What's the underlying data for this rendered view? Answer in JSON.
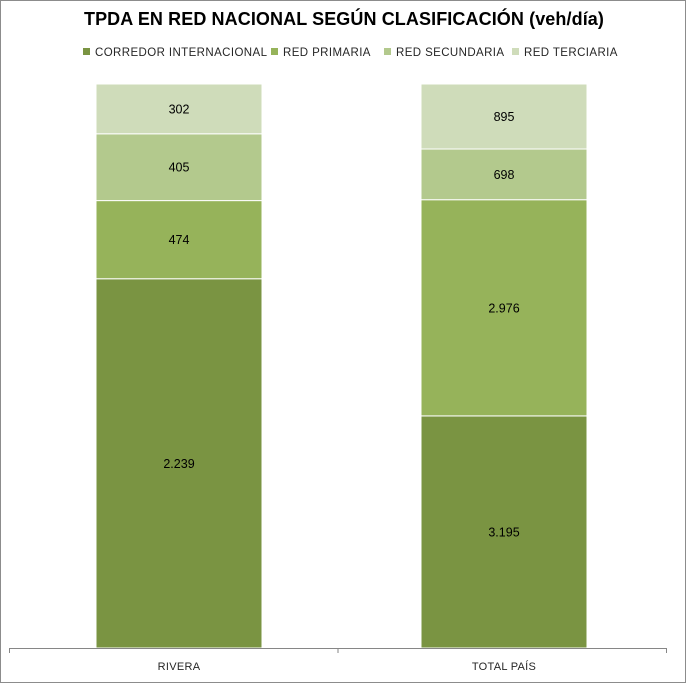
{
  "chart_data": {
    "type": "bar",
    "stacked": true,
    "title": "TPDA EN RED NACIONAL SEGÚN CLASIFICACIÓN (veh/día)",
    "categories": [
      "RIVERA",
      "TOTAL PAÍS"
    ],
    "series": [
      {
        "name": "CORREDOR INTERNACIONAL",
        "color": "#7a9442",
        "values": [
          2239,
          3195
        ],
        "labels": [
          "2.239",
          "3.195"
        ]
      },
      {
        "name": "RED PRIMARIA",
        "color": "#96b35a",
        "values": [
          474,
          2976
        ],
        "labels": [
          "474",
          "2.976"
        ]
      },
      {
        "name": "RED SECUNDARIA",
        "color": "#b3c98d",
        "values": [
          405,
          698
        ],
        "labels": [
          "405",
          "698"
        ]
      },
      {
        "name": "RED TERCIARIA",
        "color": "#cfdcba",
        "values": [
          302,
          895
        ],
        "labels": [
          "302",
          "895"
        ]
      }
    ],
    "normalized_percent": true,
    "legend_position": "top",
    "grid": false
  }
}
